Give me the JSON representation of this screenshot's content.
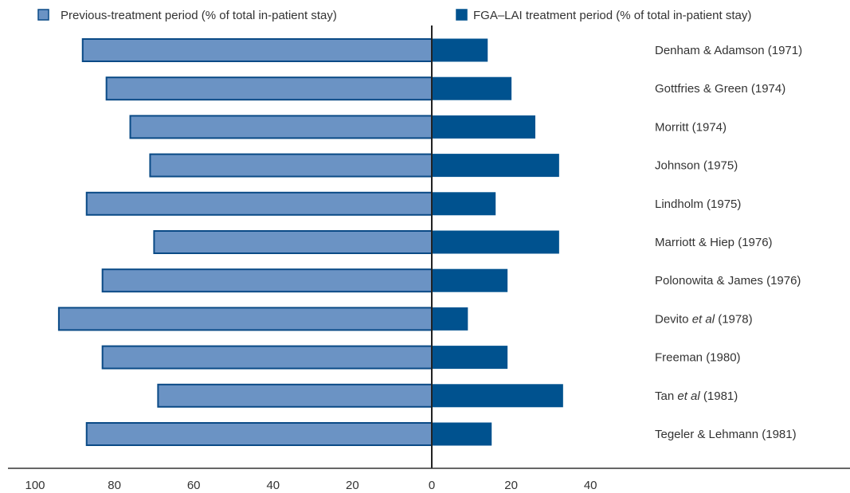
{
  "chart_data": {
    "type": "bar",
    "orientation": "horizontal-diverging",
    "legend": [
      {
        "name": "Previous-treatment period (% of total in-patient stay)",
        "color": "#6b93c4",
        "border": "#0a4a86"
      },
      {
        "name": "FGA–LAI treatment period (% of total in-patient stay)",
        "color": "#00528f",
        "border": "#00528f"
      }
    ],
    "categories": [
      {
        "pre": "Denham & Adamson (1971)",
        "em": "",
        "post": ""
      },
      {
        "pre": "Gottfries & Green (1974)",
        "em": "",
        "post": ""
      },
      {
        "pre": "Morritt (1974)",
        "em": "",
        "post": ""
      },
      {
        "pre": "Johnson (1975)",
        "em": "",
        "post": ""
      },
      {
        "pre": "Lindholm (1975)",
        "em": "",
        "post": ""
      },
      {
        "pre": "Marriott & Hiep (1976)",
        "em": "",
        "post": ""
      },
      {
        "pre": "Polonowita & James (1976)",
        "em": "",
        "post": ""
      },
      {
        "pre": "Devito ",
        "em": "et al",
        "post": " (1978)"
      },
      {
        "pre": "Freeman (1980)",
        "em": "",
        "post": ""
      },
      {
        "pre": "Tan ",
        "em": "et al",
        "post": " (1981)"
      },
      {
        "pre": "Tegeler & Lehmann (1981)",
        "em": "",
        "post": ""
      }
    ],
    "series": [
      {
        "name": "Previous-treatment period (% of total in-patient stay)",
        "values": [
          88,
          82,
          76,
          71,
          87,
          70,
          83,
          94,
          83,
          69,
          87
        ]
      },
      {
        "name": "FGA–LAI treatment period (% of total in-patient stay)",
        "values": [
          14,
          20,
          26,
          32,
          16,
          32,
          19,
          9,
          19,
          33,
          15
        ]
      }
    ],
    "x_ticks_left": [
      "100",
      "80",
      "60",
      "40",
      "20",
      "0"
    ],
    "x_ticks_right": [
      "20",
      "40"
    ],
    "xlim_left": [
      0,
      100
    ],
    "xlim_right": [
      0,
      40
    ],
    "grid": false,
    "legend_position": "top"
  }
}
